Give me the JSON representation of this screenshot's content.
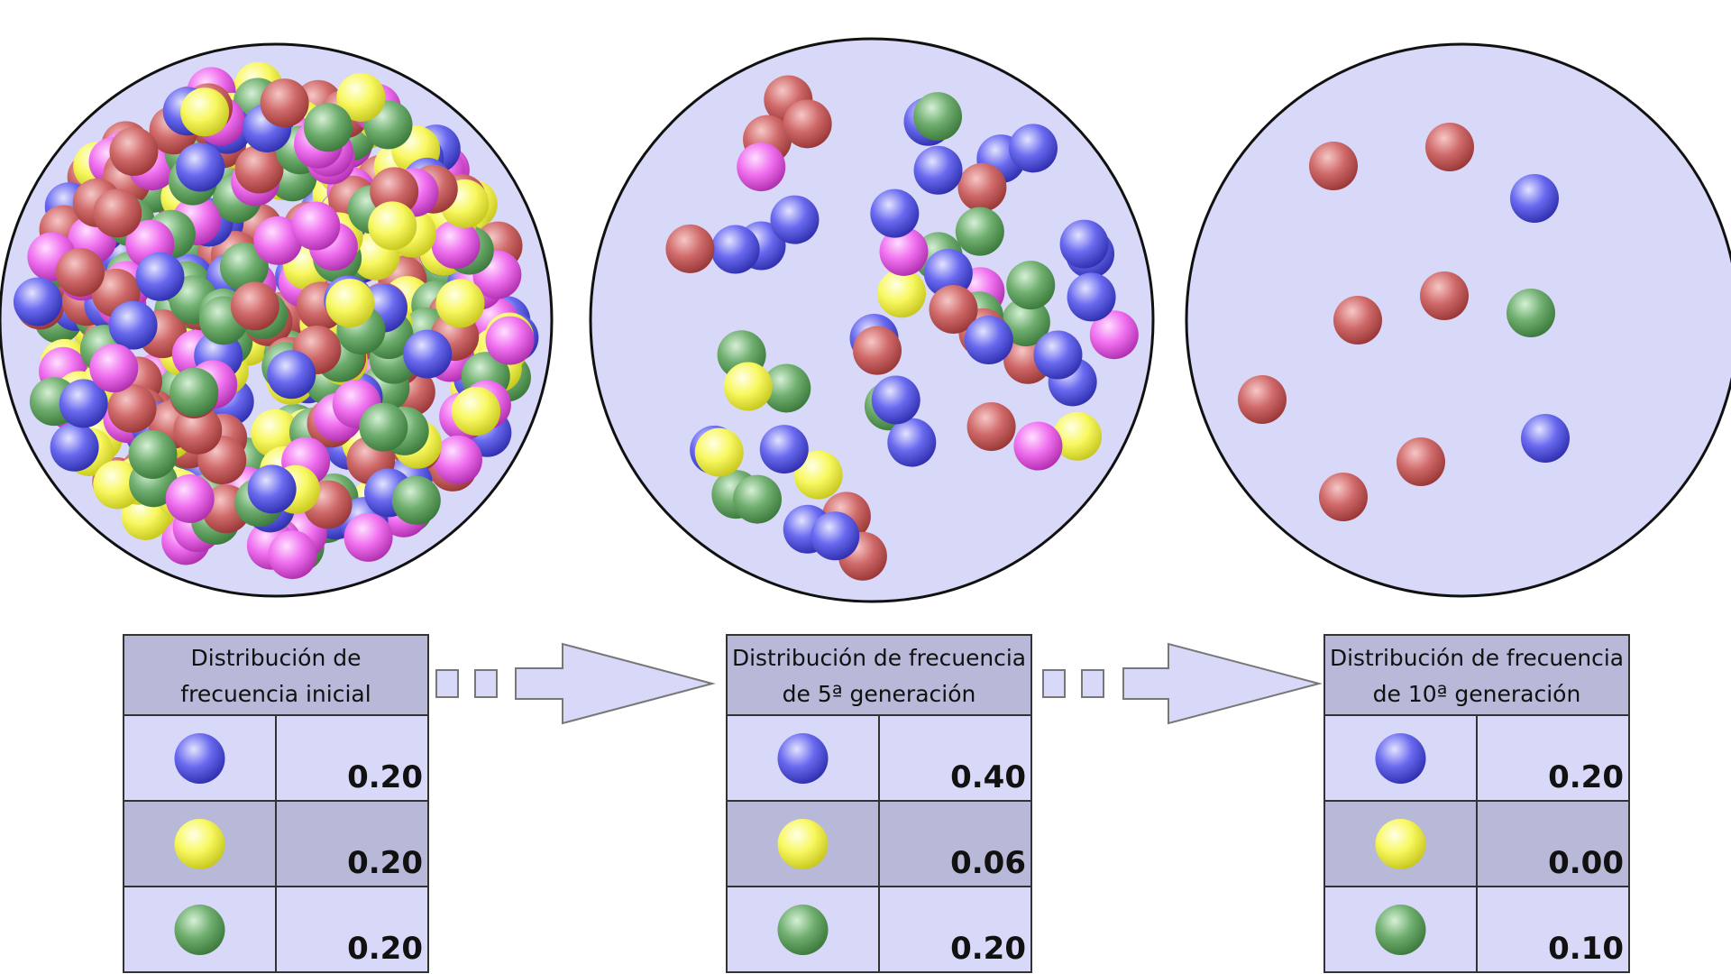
{
  "panels": [
    {
      "title_lines": [
        "Distribución de",
        "frecuencia inicial"
      ],
      "rows": [
        "0.20",
        "0.20",
        "0.20"
      ]
    },
    {
      "title_lines": [
        "Distribución de frecuencia",
        "de 5ª generación"
      ],
      "rows": [
        "0.40",
        "0.06",
        "0.20"
      ]
    },
    {
      "title_lines": [
        "Distribución de frecuencia",
        "de 10ª generación"
      ],
      "rows": [
        "0.20",
        "0.00",
        "0.10"
      ]
    }
  ]
}
